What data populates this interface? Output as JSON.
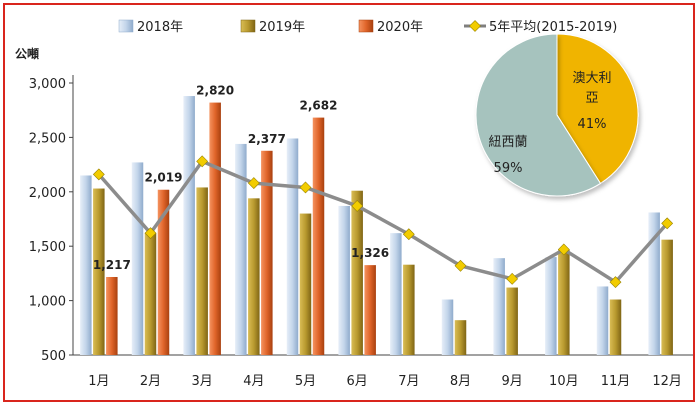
{
  "chart_data": [
    {
      "type": "bar",
      "unit_label": "公噸",
      "categories": [
        "1月",
        "2月",
        "3月",
        "4月",
        "5月",
        "6月",
        "7月",
        "8月",
        "9月",
        "10月",
        "11月",
        "12月"
      ],
      "ylim": [
        500,
        3000
      ],
      "yticks": [
        "500",
        "1,000",
        "1,500",
        "2,000",
        "2,500",
        "3,000"
      ],
      "ytick_values": [
        500,
        1000,
        1500,
        2000,
        2500,
        3000
      ],
      "grid": false,
      "legend_position": "top",
      "series": [
        {
          "name": "2018年",
          "kind": "bar",
          "color": "#b7cde4",
          "values": [
            2150,
            2270,
            2880,
            2440,
            2490,
            1870,
            1620,
            1010,
            1390,
            1400,
            1130,
            1810
          ]
        },
        {
          "name": "2019年",
          "kind": "bar",
          "color": "#b99a2f",
          "values": [
            2030,
            1620,
            2040,
            1940,
            1800,
            2010,
            1330,
            820,
            1120,
            1470,
            1010,
            1560
          ]
        },
        {
          "name": "2020年",
          "kind": "bar",
          "color": "#e0652a",
          "values": [
            1217,
            2019,
            2820,
            2377,
            2682,
            1326,
            null,
            null,
            null,
            null,
            null,
            null
          ]
        },
        {
          "name": "5年平均(2015-2019)",
          "kind": "line",
          "color": "#7f7f7f",
          "marker_color": "#f2cc00",
          "values": [
            2160,
            1620,
            2280,
            2080,
            2040,
            1870,
            1610,
            1320,
            1200,
            1470,
            1170,
            1710
          ]
        }
      ],
      "data_labels": [
        {
          "category_index": 0,
          "text": "1,217"
        },
        {
          "category_index": 1,
          "text": "2,019"
        },
        {
          "category_index": 2,
          "text": "2,820"
        },
        {
          "category_index": 3,
          "text": "2,377"
        },
        {
          "category_index": 4,
          "text": "2,682"
        },
        {
          "category_index": 5,
          "text": "1,326"
        }
      ]
    },
    {
      "type": "pie",
      "slices": [
        {
          "label_lines": [
            "澳大利",
            "亞"
          ],
          "percent_label": "41%",
          "value": 41,
          "color": "#f0b400"
        },
        {
          "label_lines": [
            "紐西蘭"
          ],
          "percent_label": "59%",
          "value": 59,
          "color": "#a6c3be"
        }
      ]
    }
  ]
}
